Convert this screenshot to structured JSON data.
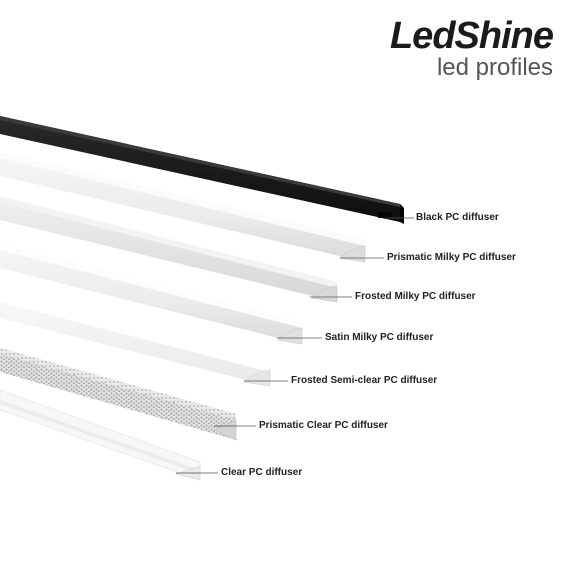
{
  "brand": {
    "name": "LedShine",
    "tagline": "led profiles"
  },
  "colors": {
    "black_profile": "#141414",
    "milky": "#eeeeee",
    "frosted": "#e4e4e4",
    "clear": "#f6f6f6",
    "text": "#222222",
    "leader": "#555555"
  },
  "products": [
    {
      "label": "Black PC diffuser"
    },
    {
      "label": "Prismatic Milky PC diffuser"
    },
    {
      "label": "Frosted Milky PC diffuser"
    },
    {
      "label": "Satin Milky PC diffuser"
    },
    {
      "label": "Frosted Semi-clear PC diffuser"
    },
    {
      "label": "Prismatic Clear PC diffuser"
    },
    {
      "label": "Clear PC diffuser"
    }
  ]
}
